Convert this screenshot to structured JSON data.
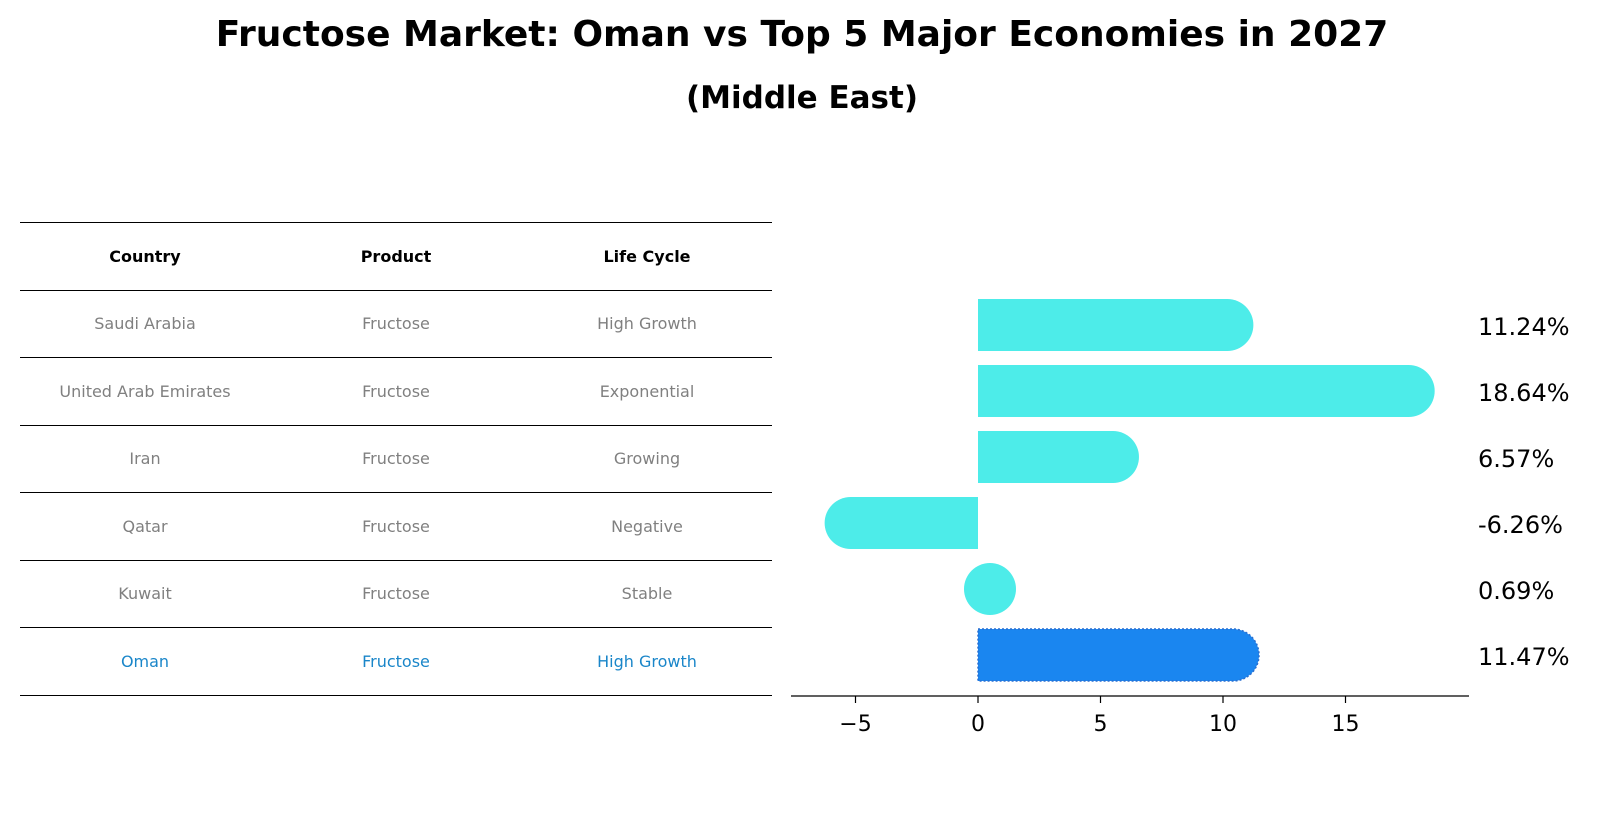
{
  "title": "Fructose Market: Oman vs Top 5 Major Economies in 2027",
  "subtitle": "(Middle East)",
  "table": {
    "headers": [
      "Country",
      "Product",
      "Life Cycle"
    ],
    "rows": [
      [
        "Saudi Arabia",
        "Fructose",
        "High Growth"
      ],
      [
        "United Arab Emirates",
        "Fructose",
        "Exponential"
      ],
      [
        "Iran",
        "Fructose",
        "Growing"
      ],
      [
        "Qatar",
        "Fructose",
        "Negative"
      ],
      [
        "Kuwait",
        "Fructose",
        "Stable"
      ],
      [
        "Oman",
        "Fructose",
        "High Growth"
      ]
    ],
    "highlight_row": 5,
    "highlight_color": "#1a86c9"
  },
  "chart_data": {
    "type": "bar",
    "orientation": "horizontal",
    "categories": [
      "Saudi Arabia",
      "United Arab Emirates",
      "Iran",
      "Qatar",
      "Kuwait",
      "Oman"
    ],
    "values": [
      11.24,
      18.64,
      6.57,
      -6.26,
      0.69,
      11.47
    ],
    "value_labels": [
      "11.24%",
      "18.64%",
      "6.57%",
      "-6.26%",
      "0.69%",
      "11.47%"
    ],
    "xlim": [
      -7.6,
      20
    ],
    "xticks": [
      -5,
      0,
      5,
      10,
      15
    ],
    "xtick_labels": [
      "−5",
      "0",
      "5",
      "10",
      "15"
    ],
    "bar_color": "#4dece9",
    "highlight_color": "#1a86f0",
    "highlight_index": 5,
    "grid": false
  }
}
